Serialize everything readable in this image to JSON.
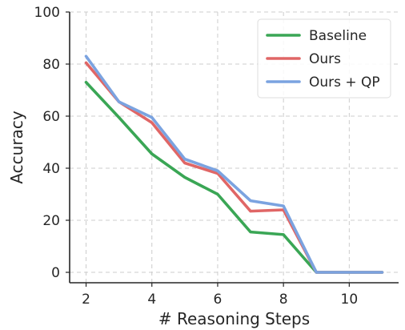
{
  "chart_data": {
    "type": "line",
    "title": "",
    "xlabel": "# Reasoning Steps",
    "ylabel": "Accuracy",
    "xlim": [
      1.5,
      11.5
    ],
    "ylim": [
      -4,
      100
    ],
    "x_ticks": [
      2,
      4,
      6,
      8,
      10
    ],
    "y_ticks": [
      0,
      20,
      40,
      60,
      80,
      100
    ],
    "grid": true,
    "legend_position": "top-right",
    "x": [
      2,
      3,
      4,
      5,
      6,
      7,
      8,
      9,
      10,
      11
    ],
    "series": [
      {
        "name": "Baseline",
        "color": "#3aa655",
        "values": [
          73,
          59.5,
          45.5,
          36.5,
          30,
          15.5,
          14.5,
          0,
          0,
          0
        ]
      },
      {
        "name": "Ours",
        "color": "#e06666",
        "values": [
          80.5,
          65.5,
          57.5,
          42,
          38,
          23.5,
          24,
          0,
          0,
          0
        ]
      },
      {
        "name": "Ours + QP",
        "color": "#7ba3e0",
        "values": [
          83,
          65.5,
          59.5,
          43.5,
          39,
          27.5,
          25.5,
          0,
          0,
          0
        ]
      }
    ]
  }
}
